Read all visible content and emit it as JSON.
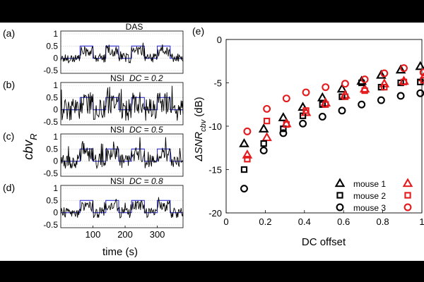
{
  "colors": {
    "blue": "#2f2fd0",
    "red": "#e41a1c",
    "black": "#000000",
    "grid": "#c8c8c8"
  },
  "left": {
    "xlabel": "time (s)",
    "ylabel_main": "cbv",
    "ylabel_sub": "R",
    "xticks": [
      "100",
      "200",
      "300"
    ],
    "yticks": [
      "-0.5",
      "0",
      "0.5",
      "1"
    ]
  },
  "panels": [
    {
      "letter": "(a)",
      "title": "DAS",
      "dc_label": ""
    },
    {
      "letter": "(b)",
      "title": "NSI",
      "dc_label": "DC = 0.2"
    },
    {
      "letter": "(c)",
      "title": "NSI",
      "dc_label": "DC = 0.5"
    },
    {
      "letter": "(d)",
      "title": "NSI",
      "dc_label": "DC = 0.8"
    }
  ],
  "right_panel": {
    "letter": "(e)"
  },
  "chart_data": [
    {
      "type": "line",
      "panel": "(a)",
      "title": "DAS",
      "xlim": [
        0,
        380
      ],
      "ylim": [
        -0.5,
        1
      ],
      "stimulus_blocks": [
        [
          60,
          100
        ],
        [
          140,
          180
        ],
        [
          220,
          260
        ],
        [
          300,
          340
        ]
      ],
      "stimulus_level": 0.5,
      "noise_amplitude": 0.2
    },
    {
      "type": "line",
      "panel": "(b)",
      "title": "NSI",
      "dc_label": "DC = 0.2",
      "xlim": [
        0,
        380
      ],
      "ylim": [
        -0.5,
        1
      ],
      "stimulus_blocks": [
        [
          60,
          100
        ],
        [
          140,
          180
        ],
        [
          220,
          260
        ],
        [
          300,
          340
        ]
      ],
      "stimulus_level": 0.5,
      "noise_amplitude": 0.45
    },
    {
      "type": "line",
      "panel": "(c)",
      "title": "NSI",
      "dc_label": "DC = 0.5",
      "xlim": [
        0,
        380
      ],
      "ylim": [
        -0.5,
        1
      ],
      "stimulus_blocks": [
        [
          60,
          100
        ],
        [
          140,
          180
        ],
        [
          220,
          260
        ],
        [
          300,
          340
        ]
      ],
      "stimulus_level": 0.5,
      "noise_amplitude": 0.3
    },
    {
      "type": "line",
      "panel": "(d)",
      "title": "NSI",
      "dc_label": "DC = 0.8",
      "xlim": [
        0,
        380
      ],
      "ylim": [
        -0.5,
        1
      ],
      "stimulus_blocks": [
        [
          60,
          100
        ],
        [
          140,
          180
        ],
        [
          220,
          260
        ],
        [
          300,
          340
        ]
      ],
      "stimulus_level": 0.5,
      "noise_amplitude": 0.22
    },
    {
      "type": "scatter",
      "panel": "(e)",
      "xlabel": "DC offset",
      "ylabel": "ΔSNR",
      "ylabel_sub": "cbv",
      "ylabel_unit": "(dB)",
      "xlim": [
        0,
        1
      ],
      "ylim": [
        -20,
        0
      ],
      "xticks": [
        "0",
        "0.2",
        "0.4",
        "0.6",
        "0.8",
        "1"
      ],
      "yticks": [
        "0",
        "-5",
        "-10",
        "-15",
        "-20"
      ],
      "x": [
        0.1,
        0.2,
        0.3,
        0.4,
        0.5,
        0.6,
        0.7,
        0.8,
        0.9,
        1.0
      ],
      "series": [
        {
          "name": "mouse 1",
          "marker": "triangle",
          "color": "#000000",
          "values": [
            -12.0,
            -10.3,
            -9.0,
            -7.8,
            -6.7,
            -5.7,
            -4.8,
            -4.1,
            -3.5,
            -3.1
          ]
        },
        {
          "name": "mouse 1",
          "marker": "triangle",
          "color": "#e41a1c",
          "values": [
            -13.3,
            -11.3,
            -9.7,
            -8.4,
            -7.3,
            -6.4,
            -5.7,
            -5.1,
            -4.8,
            -4.4
          ]
        },
        {
          "name": "mouse 2",
          "marker": "square",
          "color": "#000000",
          "values": [
            -15.0,
            -12.0,
            -10.3,
            -8.8,
            -7.5,
            -6.6,
            -5.0,
            -5.5,
            -5.0,
            -4.9
          ]
        },
        {
          "name": "mouse 2",
          "marker": "square",
          "color": "#e41a1c",
          "values": [
            -13.8,
            -9.4,
            -9.8,
            -8.2,
            -7.5,
            -6.6,
            -5.9,
            -5.5,
            -4.9,
            -4.7
          ]
        },
        {
          "name": "mouse 3",
          "marker": "circle",
          "color": "#000000",
          "values": [
            -17.2,
            -12.8,
            -10.8,
            -9.7,
            -8.9,
            -8.2,
            -7.5,
            -7.0,
            -6.5,
            -6.2
          ]
        },
        {
          "name": "mouse 3",
          "marker": "circle",
          "color": "#e41a1c",
          "values": [
            -10.6,
            -8.0,
            -6.8,
            -6.1,
            -5.5,
            -5.1,
            -4.6,
            -3.9,
            -3.3,
            -3.8
          ]
        }
      ],
      "legend_entries": [
        "mouse 1",
        "mouse 2",
        "mouse 3"
      ],
      "legend_placement": "bottom-right",
      "grid": false
    }
  ]
}
